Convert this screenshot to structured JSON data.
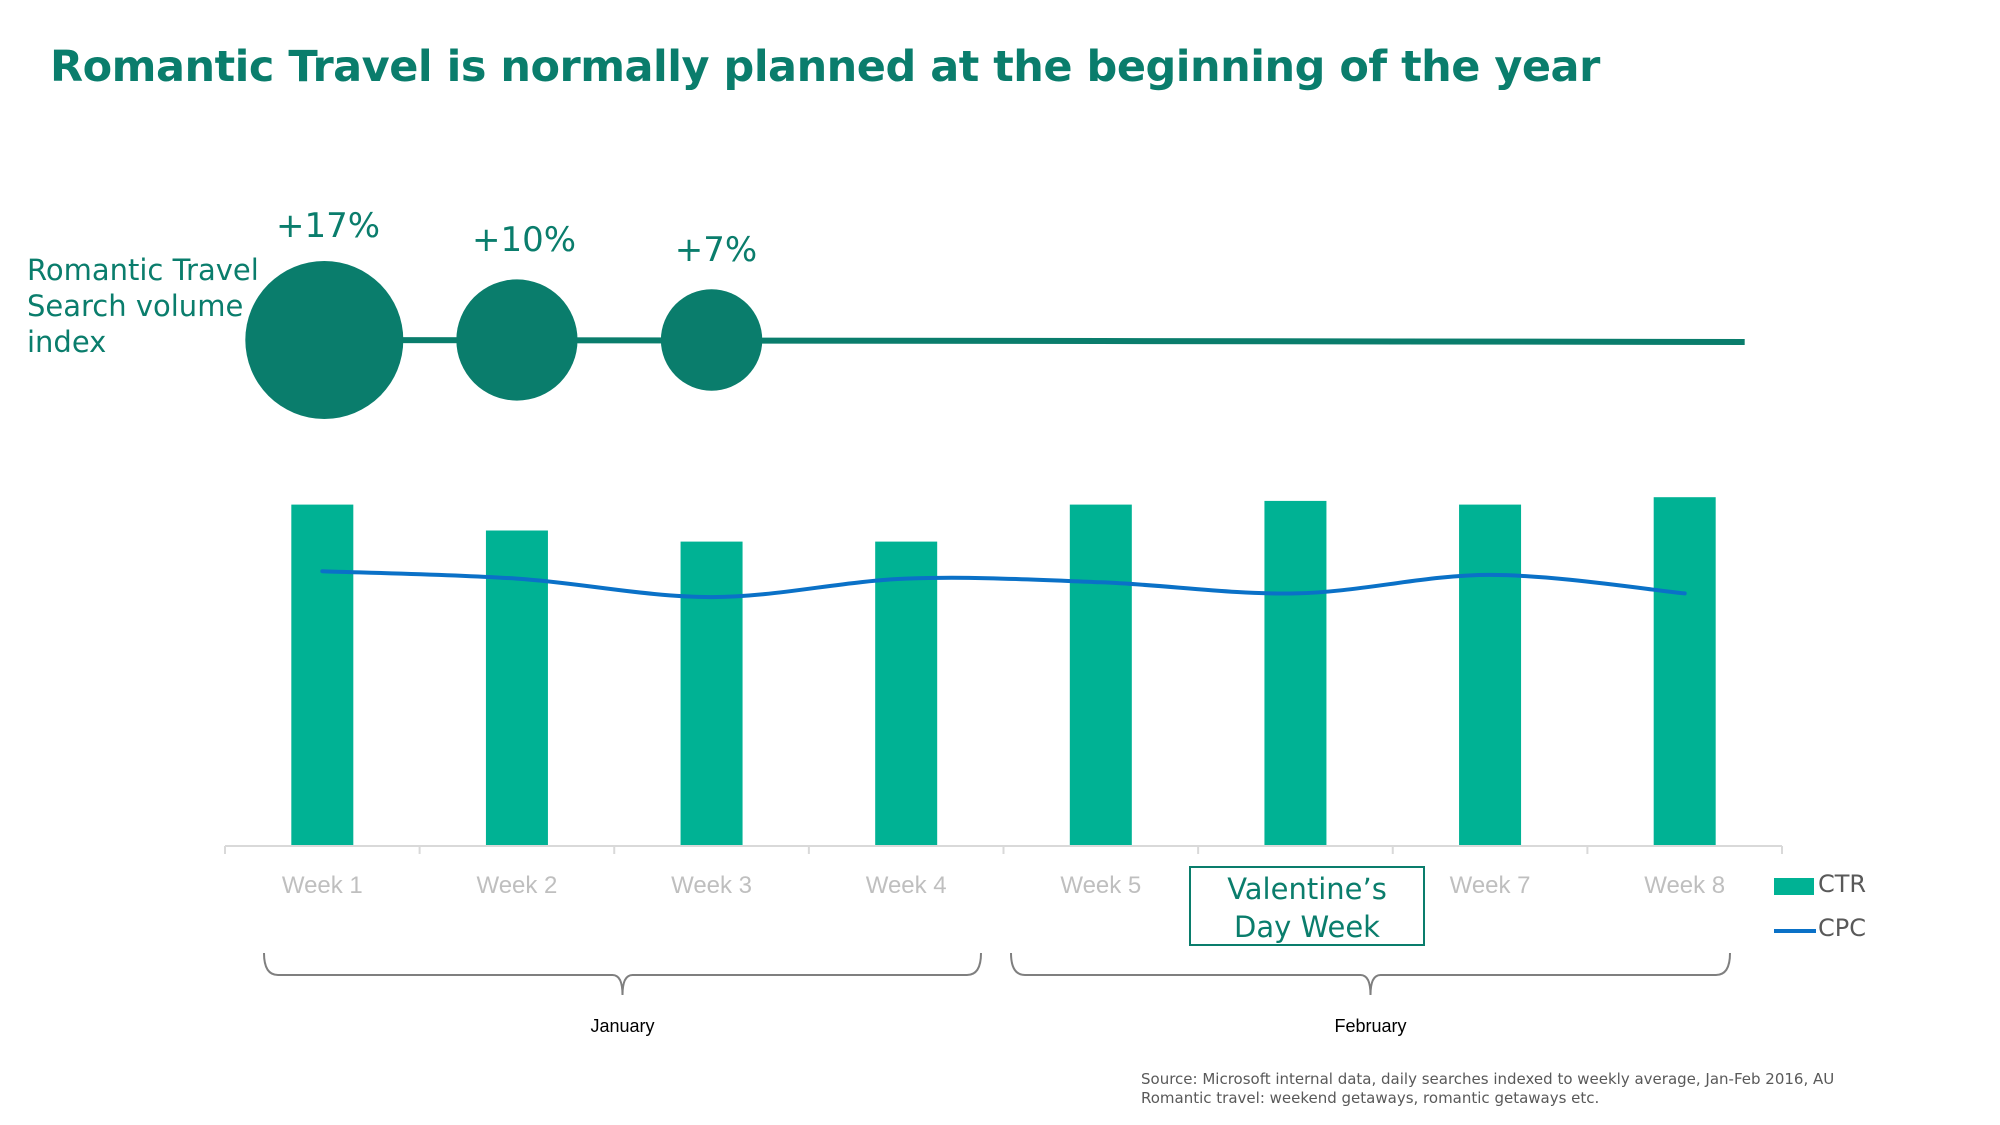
{
  "title": "Romantic Travel is normally planned at the beginning of the year",
  "search_volume": {
    "label_lines": [
      "Romantic Travel",
      "Search volume",
      "index"
    ],
    "bubbles": [
      {
        "week": "Week 1",
        "change_label": "+17%",
        "change_value": 17
      },
      {
        "week": "Week 2",
        "change_label": "+10%",
        "change_value": 10
      },
      {
        "week": "Week 3",
        "change_label": "+7%",
        "change_value": 7
      }
    ],
    "color": "#0a7d6c"
  },
  "chart_data": {
    "type": "bar",
    "categories": [
      "Week 1",
      "Week 2",
      "Week 3",
      "Week 4",
      "Week 5",
      "Valentine's Day Week",
      "Week 7",
      "Week 8"
    ],
    "series": [
      {
        "name": "CTR",
        "type": "bar",
        "color": "#00b294",
        "values": [
          0.92,
          0.85,
          0.82,
          0.82,
          0.92,
          0.93,
          0.92,
          0.94
        ]
      },
      {
        "name": "CPC",
        "type": "line",
        "color": "#0a71c7",
        "values": [
          0.74,
          0.72,
          0.67,
          0.72,
          0.71,
          0.68,
          0.73,
          0.68
        ]
      }
    ],
    "ylim": [
      0,
      1
    ],
    "grid": false,
    "legend": "right"
  },
  "highlight_week": {
    "line1": "Valentine’s",
    "line2": "Day Week"
  },
  "months": [
    {
      "label": "January",
      "weeks": [
        "Week 1",
        "Week 2",
        "Week 3",
        "Week 4"
      ]
    },
    {
      "label": "February",
      "weeks": [
        "Week 5",
        "Valentine's Day Week",
        "Week 7",
        "Week 8"
      ]
    }
  ],
  "legend": {
    "ctr": "CTR",
    "cpc": "CPC"
  },
  "source": {
    "line1": "Source: Microsoft internal data, daily searches indexed to weekly average, Jan-Feb 2016, AU",
    "line2": "Romantic travel: weekend getaways, romantic getaways etc."
  }
}
